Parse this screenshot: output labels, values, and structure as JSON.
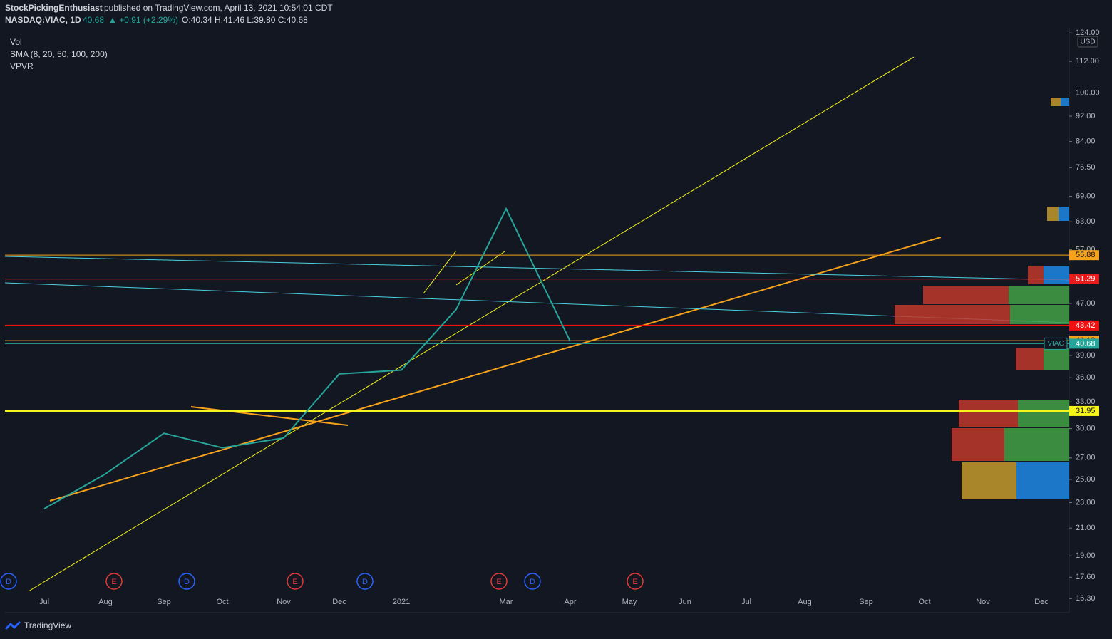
{
  "header": {
    "publisher": "StockPickingEnthusiast",
    "published": "published on TradingView.com, April 13, 2021 10:54:01 CDT",
    "symbol": "NASDAQ:VIAC, 1D",
    "last": "40.68",
    "change": "▲ +0.91 (+2.29%)",
    "ohlc": "O:40.34 H:41.46 L:39.80 C:40.68"
  },
  "indicators": [
    "Vol",
    "SMA (8, 20, 50, 100, 200)",
    "VPVR"
  ],
  "currency": "USD",
  "events": [
    "D",
    "E",
    "D",
    "E",
    "D",
    "E",
    "D",
    "E"
  ],
  "footer": "TradingView",
  "chart_data": {
    "type": "line",
    "log_scale": true,
    "categories": [
      "Jul",
      "Aug",
      "Sep",
      "Oct",
      "Nov",
      "Dec",
      "2021",
      null,
      "Mar",
      "Apr",
      "May",
      "Jun",
      "Jul",
      "Aug",
      "Sep",
      "Oct",
      "Nov",
      "Dec"
    ],
    "series": [
      {
        "name": "VIAC",
        "color": "#26a69a",
        "values": [
          22.5,
          25.5,
          29.5,
          28,
          29,
          36.5,
          37,
          46,
          66,
          41,
          null,
          null,
          null,
          null,
          null,
          null,
          null,
          null
        ]
      }
    ],
    "ylim": [
      15.5,
      126
    ],
    "yticks": [
      {
        "value": 124,
        "label": "124.00"
      },
      {
        "value": 112,
        "label": "112.00"
      },
      {
        "value": 100,
        "label": "100.00"
      },
      {
        "value": 92,
        "label": "92.00"
      },
      {
        "value": 84,
        "label": "84.00"
      },
      {
        "value": 76.5,
        "label": "76.50"
      },
      {
        "value": 69,
        "label": "69.00"
      },
      {
        "value": 63,
        "label": "63.00"
      },
      {
        "value": 57,
        "label": "57.00"
      },
      {
        "value": 47,
        "label": "47.00"
      },
      {
        "value": 39,
        "label": "39.00"
      },
      {
        "value": 36,
        "label": "36.00"
      },
      {
        "value": 33,
        "label": "33.00"
      },
      {
        "value": 30,
        "label": "30.00"
      },
      {
        "value": 27,
        "label": "27.00"
      },
      {
        "value": 25,
        "label": "25.00"
      },
      {
        "value": 23,
        "label": "23.00"
      },
      {
        "value": 21,
        "label": "21.00"
      },
      {
        "value": 19,
        "label": "19.00"
      },
      {
        "value": 17.6,
        "label": "17.60"
      },
      {
        "value": 16.3,
        "label": "16.30"
      }
    ],
    "levels": [
      {
        "value": 55.88,
        "color": "#f7a21b"
      },
      {
        "value": 51.29,
        "color": "#e81c1c"
      },
      {
        "value": 43.42,
        "color": "#f01010"
      },
      {
        "value": 41.13,
        "color": "#f7a21b"
      },
      {
        "value": 40.68,
        "color": "#26a69a",
        "name": "VIAC"
      },
      {
        "value": 31.95,
        "color": "#f5f51b"
      }
    ]
  }
}
